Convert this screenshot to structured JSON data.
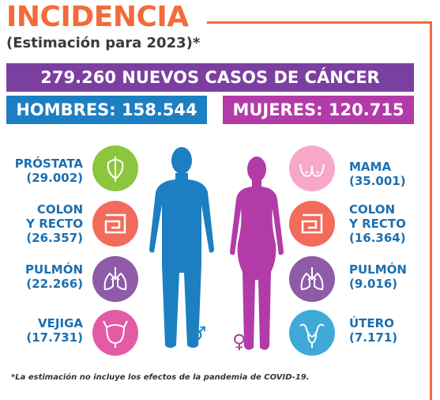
{
  "header": {
    "title": "INCIDENCIA",
    "subtitle": "(Estimación para 2023)*"
  },
  "totals": {
    "all": "279.260 NUEVOS CASOS DE CÁNCER",
    "men": "HOMBRES: 158.544",
    "women": "MUJERES: 120.715"
  },
  "men": [
    {
      "name": "PRÓSTATA",
      "count": "(29.002)",
      "icon": "prostate-icon",
      "color": "#8CC63F"
    },
    {
      "name": "COLON\nY RECTO",
      "count": "(26.357)",
      "icon": "intestine-icon",
      "color": "#F26B5B"
    },
    {
      "name": "PULMÓN",
      "count": "(22.266)",
      "icon": "lungs-icon",
      "color": "#8E5BA8"
    },
    {
      "name": "VEJIGA",
      "count": "(17.731)",
      "icon": "bladder-icon",
      "color": "#E35BA5"
    }
  ],
  "women": [
    {
      "name": "MAMA",
      "count": "(35.001)",
      "icon": "breast-icon",
      "color": "#F7A8C9"
    },
    {
      "name": "COLON\nY RECTO",
      "count": "(16.364)",
      "icon": "intestine-icon",
      "color": "#F26B5B"
    },
    {
      "name": "PULMÓN",
      "count": "(9.016)",
      "icon": "lungs-icon",
      "color": "#8E5BA8"
    },
    {
      "name": "ÚTERO",
      "count": "(7.171)",
      "icon": "uterus-icon",
      "color": "#3FA9D8"
    }
  ],
  "symbols": {
    "male": "♂",
    "female": "♀"
  },
  "footnote": "*La estimación no incluye los efectos de la pandemia de COVID-19.",
  "colors": {
    "accent": "#F26B3A",
    "purple": "#7B3FA0",
    "men_blue": "#1C7FC1",
    "women_magenta": "#B23BA8",
    "label_blue": "#1C6FB0"
  }
}
